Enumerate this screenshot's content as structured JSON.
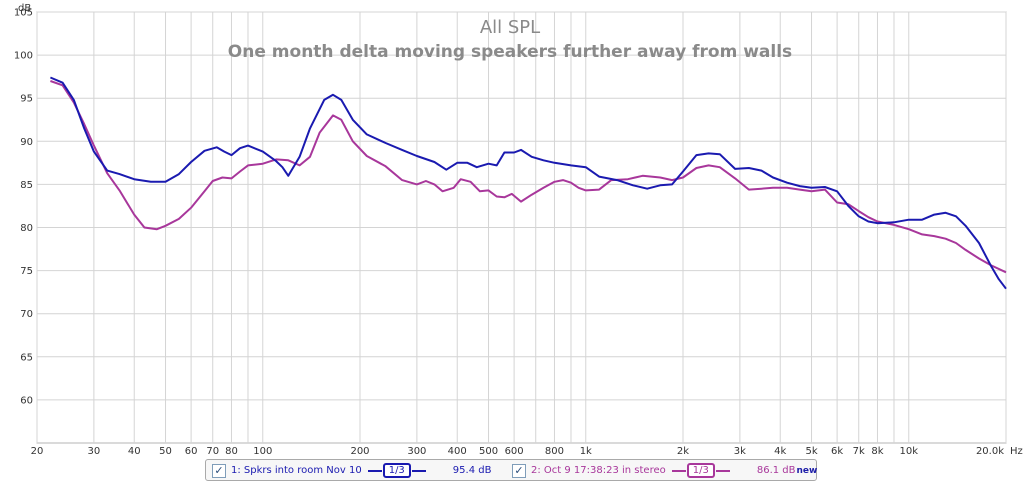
{
  "chart_data": {
    "type": "line",
    "title": "All SPL",
    "subtitle": "One month delta moving speakers further away from walls",
    "ylabel": "dB",
    "xlabel": "Hz",
    "x_scale": "log",
    "xlim": [
      20,
      20000
    ],
    "ylim": [
      55,
      105
    ],
    "y_ticks": [
      60,
      65,
      70,
      75,
      80,
      85,
      90,
      95,
      100,
      105
    ],
    "x_ticks": [
      {
        "value": 20,
        "label": "20"
      },
      {
        "value": 30,
        "label": "30"
      },
      {
        "value": 40,
        "label": "40"
      },
      {
        "value": 50,
        "label": "50"
      },
      {
        "value": 60,
        "label": "60"
      },
      {
        "value": 70,
        "label": "70"
      },
      {
        "value": 80,
        "label": "80"
      },
      {
        "value": 100,
        "label": "100"
      },
      {
        "value": 200,
        "label": "200"
      },
      {
        "value": 300,
        "label": "300"
      },
      {
        "value": 400,
        "label": "400"
      },
      {
        "value": 500,
        "label": "500"
      },
      {
        "value": 600,
        "label": "600"
      },
      {
        "value": 800,
        "label": "800"
      },
      {
        "value": 1000,
        "label": "1k"
      },
      {
        "value": 2000,
        "label": "2k"
      },
      {
        "value": 3000,
        "label": "3k"
      },
      {
        "value": 4000,
        "label": "4k"
      },
      {
        "value": 5000,
        "label": "5k"
      },
      {
        "value": 6000,
        "label": "6k"
      },
      {
        "value": 7000,
        "label": "7k"
      },
      {
        "value": 8000,
        "label": "8k"
      },
      {
        "value": 10000,
        "label": "10k"
      },
      {
        "value": 20000,
        "label": "20.0k"
      }
    ],
    "grid": true,
    "legend_position": "bottom",
    "series": [
      {
        "name": "1: Spkrs into room Nov 10",
        "smoothing": "1/3",
        "value_label": "95.4 dB",
        "color": "#1a1ab0",
        "checked": true,
        "points": [
          [
            22,
            97.4
          ],
          [
            24,
            96.8
          ],
          [
            26,
            94.8
          ],
          [
            28,
            91.5
          ],
          [
            30,
            88.8
          ],
          [
            33,
            86.6
          ],
          [
            36,
            86.2
          ],
          [
            40,
            85.6
          ],
          [
            45,
            85.3
          ],
          [
            50,
            85.3
          ],
          [
            55,
            86.2
          ],
          [
            60,
            87.6
          ],
          [
            66,
            88.9
          ],
          [
            72,
            89.3
          ],
          [
            76,
            88.8
          ],
          [
            80,
            88.4
          ],
          [
            85,
            89.2
          ],
          [
            90,
            89.5
          ],
          [
            100,
            88.8
          ],
          [
            110,
            87.7
          ],
          [
            115,
            87.0
          ],
          [
            120,
            86.0
          ],
          [
            130,
            88.2
          ],
          [
            140,
            91.5
          ],
          [
            155,
            94.8
          ],
          [
            165,
            95.4
          ],
          [
            175,
            94.8
          ],
          [
            190,
            92.5
          ],
          [
            210,
            90.8
          ],
          [
            240,
            89.8
          ],
          [
            270,
            89.0
          ],
          [
            300,
            88.3
          ],
          [
            340,
            87.6
          ],
          [
            370,
            86.7
          ],
          [
            400,
            87.5
          ],
          [
            430,
            87.5
          ],
          [
            460,
            87.0
          ],
          [
            500,
            87.4
          ],
          [
            530,
            87.2
          ],
          [
            560,
            88.7
          ],
          [
            600,
            88.7
          ],
          [
            630,
            89.0
          ],
          [
            680,
            88.2
          ],
          [
            740,
            87.8
          ],
          [
            800,
            87.5
          ],
          [
            900,
            87.2
          ],
          [
            1000,
            87.0
          ],
          [
            1100,
            85.9
          ],
          [
            1250,
            85.5
          ],
          [
            1400,
            84.9
          ],
          [
            1550,
            84.5
          ],
          [
            1700,
            84.9
          ],
          [
            1850,
            85.0
          ],
          [
            2000,
            86.5
          ],
          [
            2200,
            88.4
          ],
          [
            2400,
            88.6
          ],
          [
            2600,
            88.5
          ],
          [
            2900,
            86.8
          ],
          [
            3200,
            86.9
          ],
          [
            3500,
            86.6
          ],
          [
            3800,
            85.8
          ],
          [
            4200,
            85.2
          ],
          [
            4600,
            84.8
          ],
          [
            5000,
            84.6
          ],
          [
            5500,
            84.7
          ],
          [
            6000,
            84.2
          ],
          [
            6500,
            82.5
          ],
          [
            7000,
            81.3
          ],
          [
            7500,
            80.7
          ],
          [
            8000,
            80.5
          ],
          [
            9000,
            80.6
          ],
          [
            10000,
            80.9
          ],
          [
            11000,
            80.9
          ],
          [
            12000,
            81.5
          ],
          [
            13000,
            81.7
          ],
          [
            14000,
            81.3
          ],
          [
            15000,
            80.2
          ],
          [
            16500,
            78.2
          ],
          [
            18000,
            75.5
          ],
          [
            19000,
            74.0
          ],
          [
            20000,
            72.9
          ]
        ]
      },
      {
        "name": "2: Oct 9 17:38:23 in stereo",
        "smoothing": "1/3",
        "value_label": "86.1 dB",
        "badge": "new",
        "color": "#a8379b",
        "checked": true,
        "points": [
          [
            22,
            97.0
          ],
          [
            24,
            96.5
          ],
          [
            26,
            94.5
          ],
          [
            28,
            92.0
          ],
          [
            30,
            89.5
          ],
          [
            33,
            86.3
          ],
          [
            36,
            84.3
          ],
          [
            40,
            81.5
          ],
          [
            43,
            80.0
          ],
          [
            47,
            79.8
          ],
          [
            50,
            80.2
          ],
          [
            55,
            81.0
          ],
          [
            60,
            82.3
          ],
          [
            66,
            84.2
          ],
          [
            70,
            85.4
          ],
          [
            75,
            85.8
          ],
          [
            80,
            85.7
          ],
          [
            85,
            86.5
          ],
          [
            90,
            87.2
          ],
          [
            100,
            87.4
          ],
          [
            110,
            87.9
          ],
          [
            120,
            87.8
          ],
          [
            130,
            87.2
          ],
          [
            140,
            88.2
          ],
          [
            150,
            91.0
          ],
          [
            165,
            93.0
          ],
          [
            175,
            92.5
          ],
          [
            190,
            90.0
          ],
          [
            210,
            88.3
          ],
          [
            240,
            87.1
          ],
          [
            270,
            85.5
          ],
          [
            300,
            85.0
          ],
          [
            320,
            85.4
          ],
          [
            340,
            85.0
          ],
          [
            360,
            84.2
          ],
          [
            390,
            84.6
          ],
          [
            410,
            85.6
          ],
          [
            440,
            85.3
          ],
          [
            470,
            84.2
          ],
          [
            500,
            84.3
          ],
          [
            530,
            83.6
          ],
          [
            560,
            83.5
          ],
          [
            590,
            83.9
          ],
          [
            630,
            83.0
          ],
          [
            680,
            83.8
          ],
          [
            740,
            84.6
          ],
          [
            800,
            85.3
          ],
          [
            850,
            85.5
          ],
          [
            900,
            85.2
          ],
          [
            950,
            84.6
          ],
          [
            1000,
            84.3
          ],
          [
            1100,
            84.4
          ],
          [
            1200,
            85.5
          ],
          [
            1350,
            85.6
          ],
          [
            1500,
            86.0
          ],
          [
            1700,
            85.8
          ],
          [
            1850,
            85.5
          ],
          [
            2000,
            85.8
          ],
          [
            2200,
            86.9
          ],
          [
            2400,
            87.2
          ],
          [
            2600,
            87.0
          ],
          [
            2900,
            85.7
          ],
          [
            3200,
            84.4
          ],
          [
            3500,
            84.5
          ],
          [
            3800,
            84.6
          ],
          [
            4200,
            84.6
          ],
          [
            4600,
            84.4
          ],
          [
            5000,
            84.2
          ],
          [
            5500,
            84.4
          ],
          [
            6000,
            82.9
          ],
          [
            6500,
            82.7
          ],
          [
            7000,
            81.9
          ],
          [
            7500,
            81.2
          ],
          [
            8000,
            80.7
          ],
          [
            9000,
            80.3
          ],
          [
            10000,
            79.8
          ],
          [
            11000,
            79.2
          ],
          [
            12000,
            79.0
          ],
          [
            13000,
            78.7
          ],
          [
            14000,
            78.2
          ],
          [
            15000,
            77.4
          ],
          [
            16500,
            76.4
          ],
          [
            18000,
            75.6
          ],
          [
            20000,
            74.8
          ]
        ]
      }
    ]
  }
}
